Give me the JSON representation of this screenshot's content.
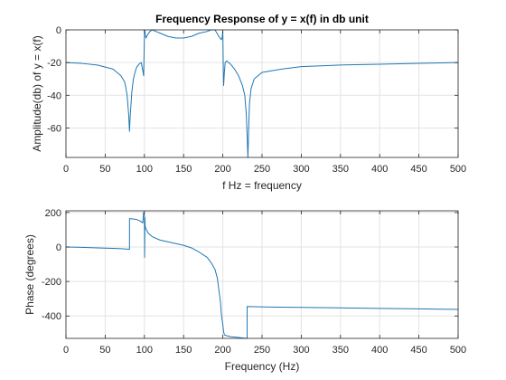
{
  "colors": {
    "line": "#1f77b4",
    "grid": "#e3e3e3",
    "axis": "#262626",
    "background": "#ffffff"
  },
  "chart_data": [
    {
      "type": "line",
      "title": "Frequency Response of y = x(f) in db unit",
      "xlabel": "f Hz = frequency",
      "ylabel": "Amplitude(db) of y = x(f)",
      "xlim": [
        0,
        500
      ],
      "ylim": [
        -78,
        0
      ],
      "xticks": [
        0,
        50,
        100,
        150,
        200,
        250,
        300,
        350,
        400,
        450,
        500
      ],
      "yticks": [
        -60,
        -40,
        -20,
        0
      ],
      "grid": true,
      "series": [
        {
          "x": [
            0,
            20,
            40,
            60,
            70,
            75,
            78,
            80,
            81,
            82,
            84,
            86,
            88,
            90,
            93,
            96,
            98,
            99,
            100,
            100.5,
            101,
            102,
            104,
            107,
            110,
            115,
            120,
            130,
            140,
            150,
            160,
            170,
            180,
            185,
            190,
            195,
            198,
            199,
            200,
            200.5,
            201,
            202,
            203,
            205,
            210,
            215,
            220,
            225,
            228,
            230,
            231,
            232,
            233,
            234,
            236,
            240,
            250,
            275,
            300,
            350,
            400,
            450,
            500
          ],
          "y": [
            -20,
            -20.5,
            -21.5,
            -24,
            -28,
            -32,
            -40,
            -52,
            -62,
            -52,
            -38,
            -30,
            -26,
            -23,
            -21,
            -20,
            -25,
            -28,
            -5,
            0,
            -3,
            -5,
            -3,
            -1,
            0,
            -1,
            -2,
            -4,
            -5,
            -5,
            -4,
            -2,
            -1,
            0,
            0,
            -4,
            -6,
            -5,
            -1,
            -20,
            -34,
            -26,
            -20,
            -19,
            -21,
            -24,
            -28,
            -34,
            -40,
            -52,
            -65,
            -78,
            -60,
            -45,
            -36,
            -30,
            -26,
            -24,
            -22.5,
            -21.5,
            -21,
            -20.5,
            -20
          ]
        }
      ]
    },
    {
      "type": "line",
      "title": "",
      "xlabel": "Frequency (Hz)",
      "ylabel": "Phase (degrees)",
      "xlim": [
        0,
        500
      ],
      "ylim": [
        -530,
        210
      ],
      "xticks": [
        0,
        50,
        100,
        150,
        200,
        250,
        300,
        350,
        400,
        450,
        500
      ],
      "yticks": [
        -400,
        -200,
        0,
        200
      ],
      "grid": true,
      "series": [
        {
          "x": [
            0,
            20,
            40,
            60,
            70,
            75,
            80,
            81,
            81.01,
            85,
            90,
            95,
            98,
            99,
            100,
            100.3,
            100.6,
            101,
            102,
            105,
            110,
            120,
            130,
            140,
            150,
            160,
            170,
            180,
            185,
            190,
            193,
            195,
            197,
            198,
            199,
            200,
            201,
            202,
            205,
            210,
            220,
            230,
            231,
            231.01,
            240,
            260,
            300,
            350,
            400,
            450,
            500
          ],
          "y": [
            0,
            -2,
            -5,
            -8,
            -10,
            -11,
            -13,
            -13,
            165,
            163,
            160,
            150,
            140,
            200,
            185,
            -60,
            170,
            120,
            105,
            80,
            60,
            40,
            30,
            20,
            10,
            -5,
            -30,
            -60,
            -90,
            -130,
            -180,
            -250,
            -320,
            -380,
            -420,
            -450,
            -490,
            -510,
            -515,
            -520,
            -525,
            -530,
            -530,
            -345,
            -346,
            -348,
            -350,
            -353,
            -356,
            -359,
            -362
          ]
        }
      ]
    }
  ]
}
